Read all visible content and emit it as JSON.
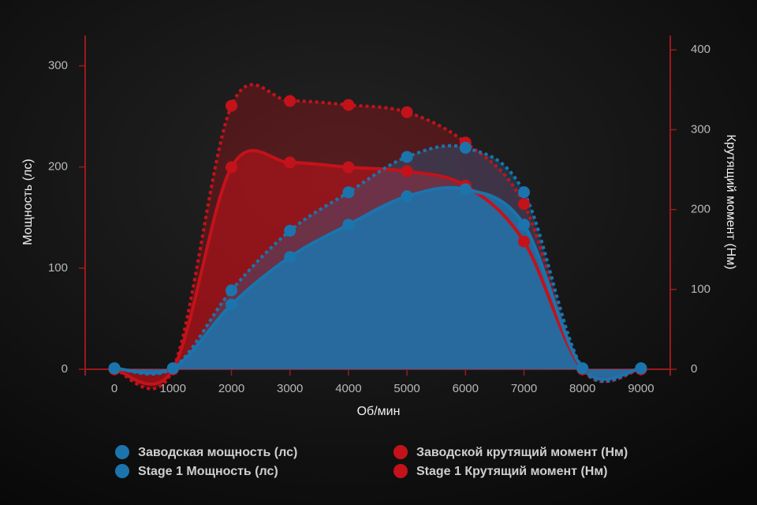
{
  "chart_data": {
    "type": "area",
    "xlabel": "Об/мин",
    "ylabel": "Мощность (лс)",
    "y2label": "Крутящий момент (Нм)",
    "x": [
      0,
      1000,
      2000,
      3000,
      4000,
      5000,
      6000,
      7000,
      8000,
      9000
    ],
    "xlim": [
      -500,
      9500
    ],
    "xticks": [
      0,
      1000,
      2000,
      3000,
      4000,
      5000,
      6000,
      7000,
      8000,
      9000
    ],
    "ylim": [
      0,
      330
    ],
    "yticks": [
      0,
      100,
      200,
      300
    ],
    "y2lim": [
      0,
      418
    ],
    "y2ticks": [
      0,
      100,
      200,
      300,
      400
    ],
    "legend": "bottom",
    "series": [
      {
        "name": "Заводская мощность (лс)",
        "color": "#1c74ad",
        "axis": "y",
        "style": "solid",
        "values": [
          1,
          1,
          64,
          111,
          143,
          171,
          178,
          143,
          1,
          1
        ]
      },
      {
        "name": "Stage 1 Мощность (лс)",
        "color": "#1c74ad",
        "axis": "y",
        "style": "dotted",
        "values": [
          1,
          1,
          78,
          137,
          175,
          210,
          219,
          175,
          1,
          1
        ]
      },
      {
        "name": "Заводской крутящий момент (Нм)",
        "color": "#c4121a",
        "axis": "y2",
        "style": "solid",
        "values": [
          0,
          0,
          253,
          259,
          253,
          248,
          230,
          160,
          0,
          0
        ]
      },
      {
        "name": "Stage 1 Крутящий момент (Нм)",
        "color": "#c4121a",
        "axis": "y2",
        "style": "dotted",
        "values": [
          0,
          0,
          330,
          336,
          331,
          322,
          284,
          207,
          0,
          0
        ]
      }
    ]
  }
}
